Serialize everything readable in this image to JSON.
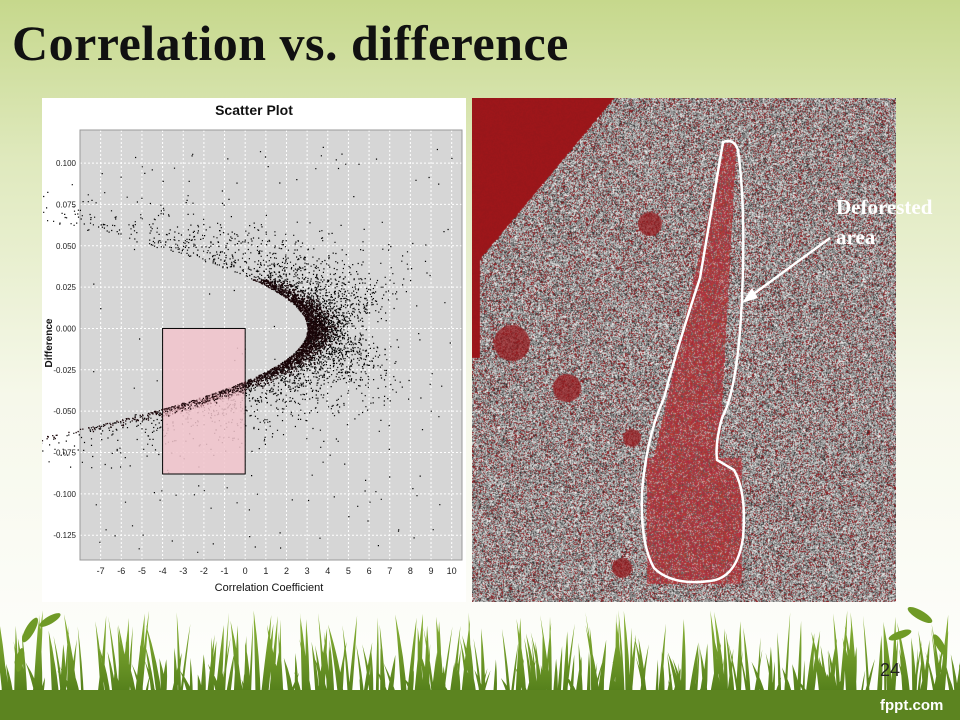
{
  "slide": {
    "title": "Correlation vs. difference",
    "page_number": "24",
    "brand": "fppt.com"
  },
  "map_annotation": {
    "line1": "Deforested",
    "line2": "area"
  },
  "colors": {
    "points": "#000000",
    "points_red": "#c0141c",
    "selection_fill": "#f2c4cc",
    "map_red": "#8b1a1a",
    "plot_bg": "#d6d6d6"
  },
  "chart_data": {
    "type": "scatter",
    "title": "Scatter Plot",
    "xlabel": "Correlation Coefficient",
    "ylabel": "Difference",
    "xlim": [
      -8,
      10.5
    ],
    "ylim": [
      -0.14,
      0.12
    ],
    "x_ticks": [
      "-7",
      "-6",
      "-5",
      "-4",
      "-3",
      "-2",
      "-1",
      "0",
      "1",
      "2",
      "3",
      "4",
      "5",
      "6",
      "7",
      "8",
      "9",
      "10"
    ],
    "y_ticks": [
      "0.100",
      "0.075",
      "0.050",
      "0.025",
      "0.000",
      "-0.025",
      "-0.050",
      "-0.075",
      "-0.100",
      "-0.125"
    ],
    "grid": true,
    "shape": "chevron-shaped point cloud opening to the right, apex near x=3, y=0; densest and reddest along the inner edge near x=0",
    "selection_box": {
      "x": [
        -4,
        0
      ],
      "y": [
        -0.088,
        0.0
      ]
    }
  }
}
